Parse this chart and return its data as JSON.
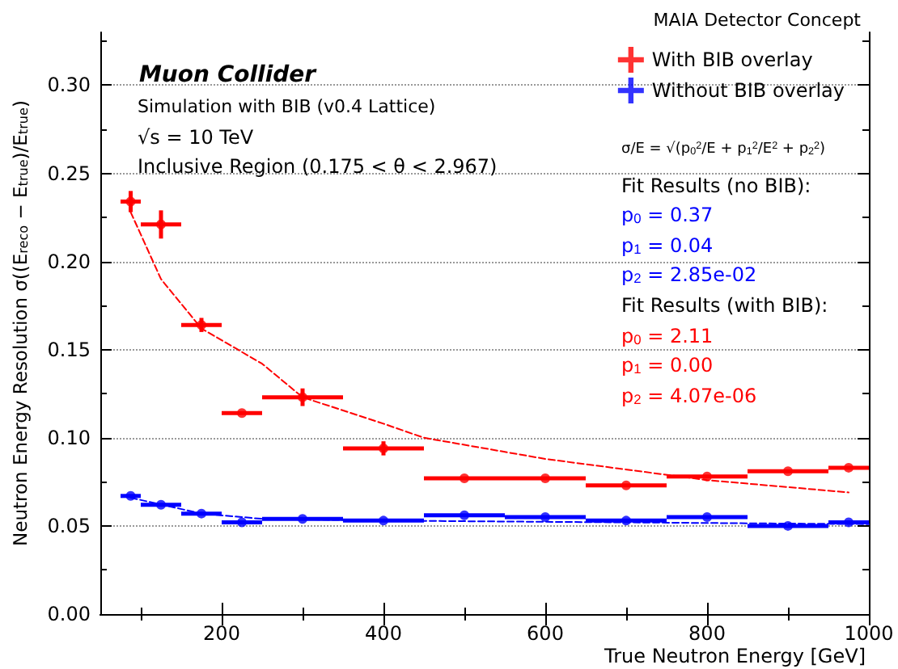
{
  "chart_data": {
    "type": "scatter",
    "title": "MAIA Detector Concept",
    "xlabel": "True Neutron Energy [GeV]",
    "ylabel": "Neutron Energy Resolution σ((E$_{reco}$ − E$_{true}$)/E$_{true}$)",
    "annotations": [
      "Muon Collider",
      "Simulation with BIB (v0.4 Lattice)",
      "√s = 10 TeV",
      "Inclusive Region (0.175 < θ < 2.967)",
      "σ/E = √(p$_{0}$$^{2}$/E + p$_{1}$$^{2}$/E$^{2}$ + p$_{2}$$^{2}$)",
      "Fit Results (no BIB):",
      "p$_{0}$ = 0.37",
      "p$_{1}$ = 0.04",
      "p$_{2}$ = 2.85e-02",
      "Fit Results (with BIB):",
      "p$_{0}$ = 2.11",
      "p$_{1}$ = 0.00",
      "p$_{2}$ = 4.07e-06"
    ],
    "x": [
      87.5,
      125,
      175,
      225,
      300,
      400,
      500,
      600,
      700,
      800,
      900,
      975
    ],
    "series": [
      {
        "name": "With BIB overlay",
        "color": "#ff0000",
        "values": [
          0.234,
          0.221,
          0.164,
          0.114,
          0.123,
          0.094,
          0.077,
          0.077,
          0.073,
          0.078,
          0.081,
          0.083
        ],
        "xerrors": [
          12.5,
          25,
          25,
          25,
          50,
          50,
          50,
          50,
          50,
          50,
          50,
          25
        ],
        "errors": [
          0.006,
          0.008,
          0.004,
          null,
          0.005,
          0.004,
          null,
          null,
          null,
          null,
          null,
          null
        ]
      },
      {
        "name": "Without BIB overlay",
        "color": "#0000ff",
        "values": [
          0.067,
          0.062,
          0.057,
          0.052,
          0.054,
          0.053,
          0.056,
          0.055,
          0.053,
          0.055,
          0.05,
          0.052
        ],
        "xerrors": [
          12.5,
          25,
          25,
          25,
          50,
          50,
          50,
          50,
          50,
          50,
          50,
          25
        ]
      },
      {
        "type": "line",
        "color": "#ff0000",
        "line_style": "dashed",
        "marker": "none",
        "x": [
          87.5,
          125,
          175,
          250,
          300,
          400,
          450,
          600,
          800,
          975
        ],
        "values": [
          0.228,
          0.19,
          0.162,
          0.142,
          0.123,
          0.108,
          0.1,
          0.088,
          0.076,
          0.069
        ]
      },
      {
        "type": "line",
        "color": "#0000ff",
        "line_style": "dashed",
        "marker": "none",
        "x": [
          87.5,
          175,
          250,
          400,
          1000
        ],
        "values": [
          0.066,
          0.057,
          0.054,
          0.053,
          0.051
        ]
      }
    ],
    "marker": "circle",
    "xlim": [
      50,
      1000
    ],
    "xticks": [
      200,
      400,
      600,
      800,
      1000
    ],
    "ylim": [
      0,
      0.33
    ],
    "yticks": [
      {
        "value": 0,
        "label": "0.00"
      },
      {
        "value": 0.05,
        "label": "0.05"
      },
      {
        "value": 0.1,
        "label": "0.10"
      },
      {
        "value": 0.15,
        "label": "0.15"
      },
      {
        "value": 0.2,
        "label": "0.20"
      },
      {
        "value": 0.25,
        "label": "0.25"
      },
      {
        "value": 0.3,
        "label": "0.30"
      }
    ],
    "grid": "y",
    "legend": "top right"
  }
}
